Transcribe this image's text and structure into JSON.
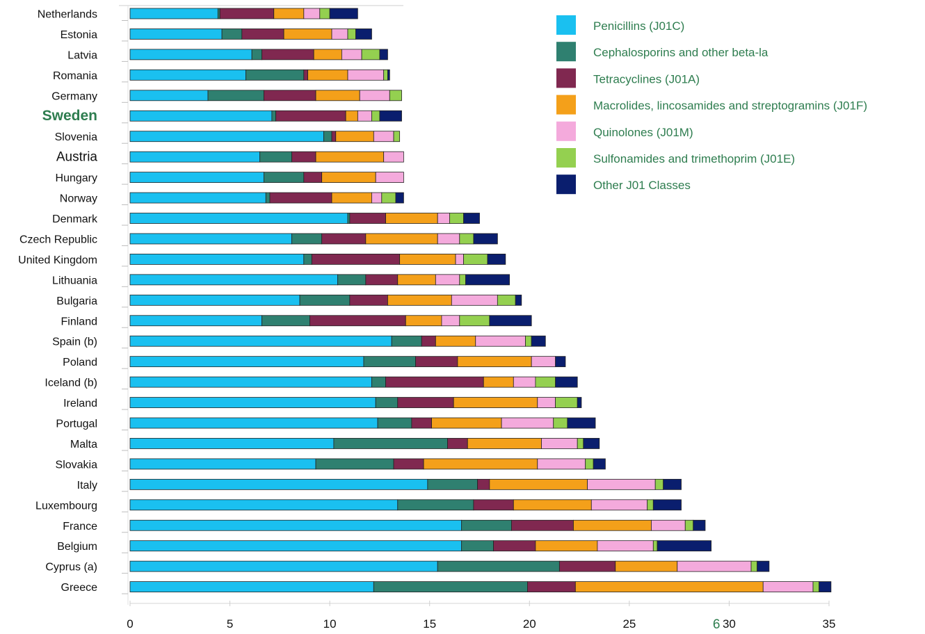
{
  "chart_data": {
    "type": "bar",
    "orientation": "horizontal",
    "stacked": true,
    "xlim": [
      0,
      35
    ],
    "xticks": [
      "0",
      "5",
      "10",
      "15",
      "20",
      "25",
      "30",
      "35"
    ],
    "stray_annotation": "6",
    "legend_position": "top-right",
    "categories": [
      "Netherlands",
      "Estonia",
      "Latvia",
      "Romania",
      "Germany",
      "Sweden",
      "Slovenia",
      "Austria",
      "Hungary",
      "Norway",
      "Denmark",
      "Czech Republic",
      "United Kingdom",
      "Lithuania",
      "Bulgaria",
      "Finland",
      "Spain (b)",
      "Poland",
      "Iceland (b)",
      "Ireland",
      "Portugal",
      "Malta",
      "Slovakia",
      "Italy",
      "Luxembourg",
      "France",
      "Belgium",
      "Cyprus (a)",
      "Greece"
    ],
    "emphasized_categories": {
      "Sweden": "highlight",
      "Austria": "large"
    },
    "series": [
      {
        "name": "Penicillins (J01C)",
        "color": "#1ac0f0",
        "values": [
          4.4,
          4.6,
          6.1,
          5.8,
          3.9,
          7.1,
          9.7,
          6.5,
          6.7,
          6.8,
          10.9,
          8.1,
          8.7,
          10.4,
          8.5,
          6.6,
          13.1,
          11.7,
          12.1,
          12.3,
          12.4,
          10.2,
          9.3,
          14.9,
          13.4,
          16.6,
          16.6,
          15.4,
          12.2
        ]
      },
      {
        "name": "Cephalosporins and other beta-la",
        "color": "#2f8070",
        "values": [
          0.1,
          1.0,
          0.5,
          2.9,
          2.8,
          0.2,
          0.4,
          1.6,
          2.0,
          0.2,
          0.1,
          1.5,
          0.4,
          1.4,
          2.5,
          2.4,
          1.5,
          2.6,
          0.7,
          1.1,
          1.7,
          5.7,
          3.9,
          2.5,
          3.8,
          2.5,
          1.6,
          6.1,
          7.7
        ]
      },
      {
        "name": "Tetracyclines (J01A)",
        "color": "#802850",
        "values": [
          2.7,
          2.1,
          2.6,
          0.2,
          2.6,
          3.5,
          0.2,
          1.2,
          0.9,
          3.1,
          1.8,
          2.2,
          4.4,
          1.6,
          1.9,
          4.8,
          0.7,
          2.1,
          4.9,
          2.8,
          1.0,
          1.0,
          1.5,
          0.6,
          2.0,
          3.1,
          2.1,
          2.8,
          2.4
        ]
      },
      {
        "name": "Macrolides, lincosamides and streptogramins (J01F)",
        "color": "#f4a01a",
        "values": [
          1.5,
          2.4,
          1.4,
          2.0,
          2.2,
          0.6,
          1.9,
          3.4,
          2.7,
          2.0,
          2.6,
          3.6,
          2.8,
          1.9,
          3.2,
          1.8,
          2.0,
          3.7,
          1.5,
          4.2,
          3.5,
          3.7,
          5.7,
          4.9,
          3.9,
          3.9,
          3.1,
          3.1,
          9.4
        ]
      },
      {
        "name": "Quinolones (J01M)",
        "color": "#f4aadc",
        "values": [
          0.8,
          0.8,
          1.0,
          1.8,
          1.5,
          0.7,
          1.0,
          1.0,
          1.4,
          0.5,
          0.6,
          1.1,
          0.4,
          1.2,
          2.3,
          0.9,
          2.5,
          1.2,
          1.1,
          0.9,
          2.6,
          1.8,
          2.4,
          3.4,
          2.8,
          1.7,
          2.8,
          3.7,
          2.5
        ]
      },
      {
        "name": "Sulfonamides and trimethoprim (J01E)",
        "color": "#94d050",
        "values": [
          0.5,
          0.4,
          0.9,
          0.2,
          0.6,
          0.4,
          0.3,
          0.0,
          0.0,
          0.7,
          0.7,
          0.7,
          1.2,
          0.3,
          0.9,
          1.5,
          0.3,
          0.0,
          1.0,
          1.1,
          0.7,
          0.3,
          0.4,
          0.4,
          0.3,
          0.4,
          0.2,
          0.3,
          0.3
        ]
      },
      {
        "name": "Other J01 Classes",
        "color": "#0a1e6e",
        "values": [
          1.4,
          0.8,
          0.4,
          0.1,
          0.0,
          1.1,
          0.0,
          0.0,
          0.0,
          0.4,
          0.8,
          1.2,
          0.9,
          2.2,
          0.3,
          2.1,
          0.7,
          0.5,
          1.1,
          0.2,
          1.4,
          0.8,
          0.6,
          0.9,
          1.4,
          0.6,
          2.7,
          0.6,
          0.6
        ]
      }
    ]
  }
}
